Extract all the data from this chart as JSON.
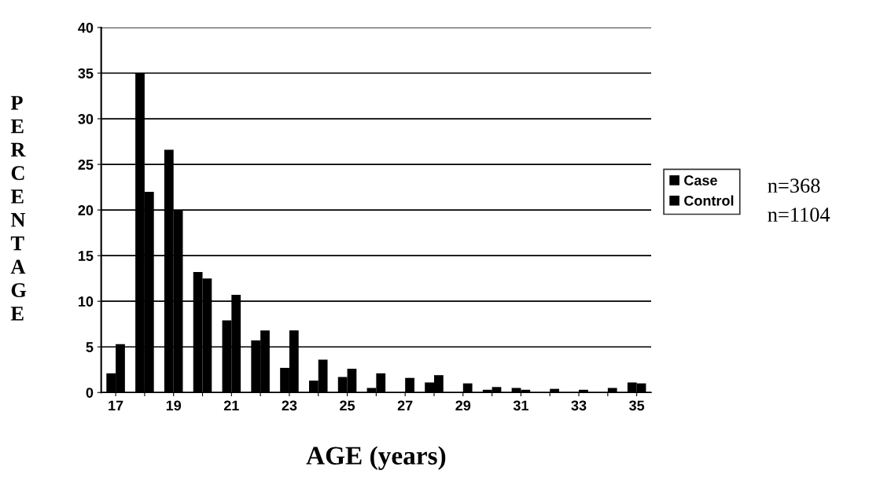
{
  "chart_data": {
    "type": "bar",
    "xlabel": "AGE (years)",
    "ylabel": "PERCENTAGE",
    "categories": [
      "17",
      null,
      "19",
      null,
      "21",
      null,
      "23",
      null,
      "25",
      null,
      "27",
      null,
      "29",
      null,
      "31",
      null,
      "33",
      null,
      "35"
    ],
    "series": [
      {
        "name": "Case",
        "color": "#000000",
        "values": [
          2.1,
          35,
          26.6,
          13.2,
          7.9,
          5.7,
          2.7,
          1.3,
          1.7,
          0.5,
          0,
          1.1,
          0,
          0.3,
          0.5,
          0,
          0,
          0,
          1.1
        ]
      },
      {
        "name": "Control",
        "color": "#000000",
        "values": [
          5.3,
          22,
          20,
          12.5,
          10.7,
          6.8,
          6.8,
          3.6,
          2.6,
          2.1,
          1.6,
          1.9,
          1.0,
          0.6,
          0.3,
          0.4,
          0.3,
          0.5,
          1.0
        ]
      }
    ],
    "ylim": [
      0,
      40
    ],
    "yticks": [
      0,
      5,
      10,
      15,
      20,
      25,
      30,
      35,
      40
    ],
    "grid": "y",
    "legend": "right",
    "annotations": [
      "n=368",
      "n=1104"
    ]
  }
}
